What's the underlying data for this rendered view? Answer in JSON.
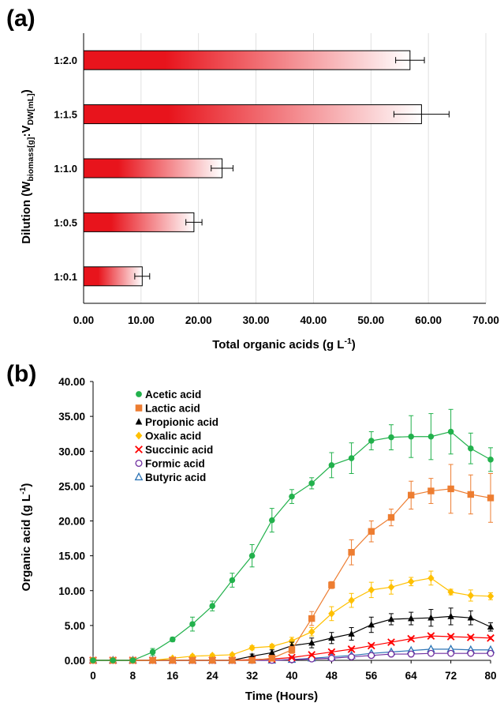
{
  "chart_data": [
    {
      "panel": "(a)",
      "type": "bar",
      "orientation": "horizontal",
      "categories": [
        "1:0.1",
        "1:0.5",
        "1:1.0",
        "1:1.5",
        "1:2.0"
      ],
      "values": [
        10.2,
        19.2,
        24.1,
        58.8,
        56.8
      ],
      "errors": [
        1.3,
        1.4,
        1.9,
        4.8,
        2.5
      ],
      "ylabel": {
        "main": "Dilution (W",
        "sub1": "biomass[g]",
        "mid": ":V",
        "sub2": "DW[mL]",
        "end": ")"
      },
      "xlabel": {
        "main": "Total organic acids (g L",
        "sup": "-1",
        "end": ")"
      },
      "xlim": [
        0,
        70
      ],
      "xticks": [
        "0.00",
        "10.00",
        "20.00",
        "30.00",
        "40.00",
        "50.00",
        "60.00",
        "70.00"
      ],
      "bar_gradient": [
        "#e8141c",
        "#ffffff"
      ],
      "grid": true
    },
    {
      "panel": "(b)",
      "type": "line",
      "x": [
        0,
        4,
        8,
        12,
        16,
        20,
        24,
        28,
        32,
        36,
        40,
        44,
        48,
        52,
        56,
        60,
        64,
        68,
        72,
        76,
        80
      ],
      "xlim": [
        0,
        80
      ],
      "ylim": [
        0,
        40
      ],
      "xticks": [
        "0",
        "8",
        "16",
        "24",
        "32",
        "40",
        "48",
        "56",
        "64",
        "72",
        "80"
      ],
      "yticks": [
        "0.00",
        "5.00",
        "10.00",
        "15.00",
        "20.00",
        "25.00",
        "30.00",
        "35.00",
        "40.00"
      ],
      "xlabel": "Time (Hours)",
      "ylabel": {
        "main": "Organic acid (g L",
        "sup": "-1",
        "end": ")"
      },
      "legend_position": "top-left",
      "grid": false,
      "series": [
        {
          "name": "Acetic acid",
          "marker": "circle",
          "color": "#22b14c",
          "values": [
            0,
            0,
            0,
            1.2,
            3.0,
            5.2,
            7.8,
            11.5,
            15.0,
            20.1,
            23.5,
            25.4,
            28.0,
            29.0,
            31.5,
            32.0,
            32.1,
            32.1,
            32.8,
            30.4,
            28.8
          ],
          "errors": [
            0,
            0,
            0,
            0.5,
            0.3,
            1.0,
            0.7,
            1.0,
            1.6,
            1.7,
            1.0,
            0.8,
            1.8,
            2.2,
            1.3,
            1.8,
            3.0,
            3.3,
            3.2,
            2.2,
            1.7
          ]
        },
        {
          "name": "Lactic acid",
          "marker": "square",
          "color": "#ed7d31",
          "values": [
            0,
            0,
            0,
            0,
            0,
            0,
            0,
            0,
            0,
            0.3,
            1.5,
            6.0,
            10.8,
            15.5,
            18.5,
            20.5,
            23.7,
            24.3,
            24.6,
            23.8,
            23.3
          ],
          "errors": [
            0,
            0,
            0,
            0,
            0,
            0,
            0,
            0,
            0,
            0.2,
            0.5,
            1.0,
            0.5,
            1.8,
            1.5,
            1.2,
            2.0,
            1.8,
            3.5,
            2.8,
            3.5
          ]
        },
        {
          "name": "Propionic acid",
          "marker": "triangle",
          "color": "#000000",
          "values": [
            0,
            0,
            0,
            0,
            0,
            0,
            0,
            0,
            0.6,
            1.1,
            2.1,
            2.5,
            3.2,
            3.8,
            5.1,
            5.9,
            6.0,
            6.1,
            6.3,
            6.1,
            4.8
          ],
          "errors": [
            0,
            0,
            0,
            0,
            0,
            0,
            0,
            0,
            0.3,
            0.4,
            0.5,
            0.7,
            0.8,
            0.9,
            1.1,
            0.8,
            0.9,
            1.2,
            1.2,
            1.0,
            0.6
          ]
        },
        {
          "name": "Oxalic acid",
          "marker": "diamond",
          "color": "#ffc000",
          "values": [
            0,
            0,
            0,
            0,
            0.3,
            0.6,
            0.7,
            0.8,
            1.8,
            2.0,
            2.8,
            4.1,
            6.7,
            8.6,
            10.1,
            10.5,
            11.3,
            11.8,
            9.8,
            9.3,
            9.2
          ],
          "errors": [
            0,
            0,
            0,
            0,
            0.1,
            0.2,
            0.2,
            0.2,
            0.3,
            0.3,
            0.5,
            0.6,
            1.0,
            1.0,
            1.1,
            1.0,
            0.6,
            1.0,
            0.4,
            0.8,
            0.5
          ]
        },
        {
          "name": "Succinic acid",
          "marker": "cross",
          "color": "#ff0000",
          "values": [
            0,
            0,
            0,
            0,
            0,
            0,
            0,
            0,
            0.1,
            0.2,
            0.4,
            0.8,
            1.2,
            1.6,
            2.1,
            2.6,
            3.1,
            3.5,
            3.4,
            3.3,
            3.2
          ],
          "errors": [
            0,
            0,
            0,
            0,
            0,
            0,
            0,
            0,
            0.05,
            0.1,
            0.1,
            0.15,
            0.2,
            0.2,
            0.2,
            0.2,
            0.2,
            0.2,
            0.2,
            0.2,
            0.2
          ]
        },
        {
          "name": "Formic acid",
          "marker": "open-circle",
          "color": "#7030a0",
          "values": [
            0,
            0,
            0,
            0,
            0,
            0,
            0,
            0,
            0,
            0,
            0.1,
            0.2,
            0.3,
            0.5,
            0.7,
            0.9,
            0.9,
            1.0,
            1.0,
            1.0,
            1.0
          ],
          "errors": [
            0,
            0,
            0,
            0,
            0,
            0,
            0,
            0,
            0,
            0,
            0.05,
            0.05,
            0.05,
            0.1,
            0.1,
            0.1,
            0.1,
            0.1,
            0.1,
            0.1,
            0.1
          ]
        },
        {
          "name": "Butyric acid",
          "marker": "open-triangle",
          "color": "#2e75b6",
          "values": [
            0,
            0,
            0,
            0,
            0,
            0,
            0,
            0,
            0,
            0,
            0.1,
            0.3,
            0.5,
            0.7,
            1.0,
            1.2,
            1.4,
            1.6,
            1.6,
            1.5,
            1.5
          ],
          "errors": [
            0,
            0,
            0,
            0,
            0,
            0,
            0,
            0,
            0,
            0,
            0.05,
            0.05,
            0.1,
            0.1,
            0.1,
            0.1,
            0.1,
            0.1,
            0.1,
            0.1,
            0.1
          ]
        }
      ]
    }
  ]
}
